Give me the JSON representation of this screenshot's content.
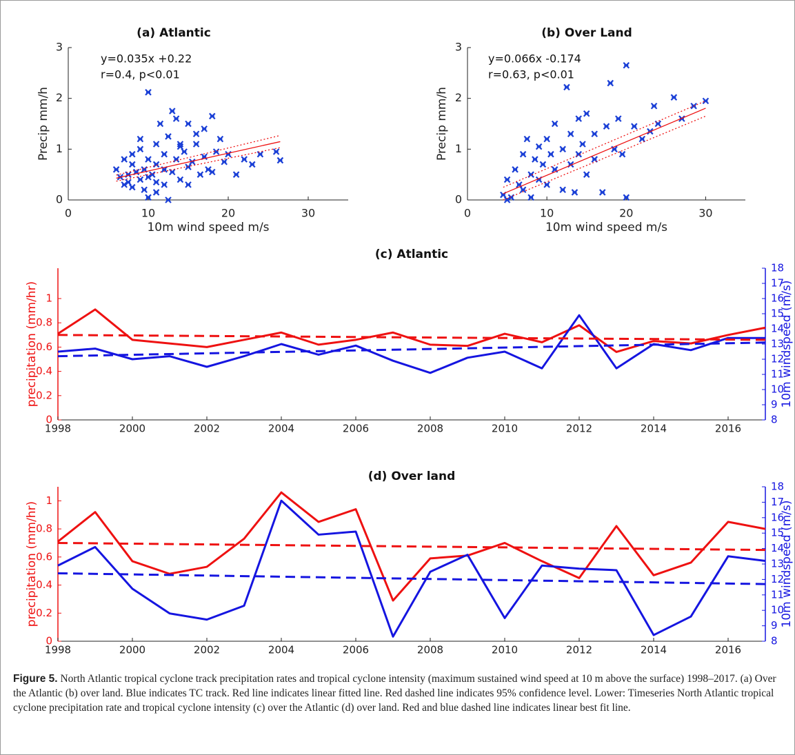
{
  "chart_data": [
    {
      "type": "scatter",
      "title": "(a) Atlantic",
      "x_label": "10m wind speed m/s",
      "y_label": "Precip mm/h",
      "annotations": [
        "y=0.035x +0.22",
        "r=0.4, p<0.01"
      ],
      "xlim": [
        0,
        35
      ],
      "ylim": [
        0,
        3
      ],
      "xticks": [
        0,
        10,
        20,
        30
      ],
      "yticks": [
        0,
        1,
        2,
        3
      ],
      "series": [
        {
          "color": "#1a3fd6",
          "marker": "x",
          "x": [
            6,
            6.5,
            7,
            7,
            7.5,
            8,
            8,
            8.5,
            9,
            9,
            9.5,
            9.5,
            10,
            10,
            10,
            10.5,
            11,
            11,
            11,
            11.5,
            12,
            12,
            12.5,
            13,
            13,
            13.5,
            14,
            14,
            14.5,
            15,
            15,
            15.5,
            16,
            16.5,
            17,
            17,
            18,
            18,
            18.5,
            19,
            19.5,
            20,
            21,
            22,
            23,
            24,
            26,
            26.5,
            10,
            12,
            9,
            8,
            13.5,
            11,
            15,
            17.5,
            16,
            7.5,
            12.5,
            14
          ],
          "values": [
            0.6,
            0.45,
            0.3,
            0.8,
            0.5,
            0.25,
            0.7,
            0.55,
            0.4,
            1.0,
            0.6,
            0.2,
            0.45,
            0.8,
            2.12,
            0.5,
            0.35,
            1.1,
            0.7,
            1.5,
            0.6,
            0.9,
            1.25,
            0.55,
            1.75,
            0.8,
            0.4,
            1.1,
            0.95,
            0.65,
            1.5,
            0.75,
            1.1,
            0.5,
            1.4,
            0.85,
            1.65,
            0.55,
            0.95,
            1.2,
            0.75,
            0.9,
            0.5,
            0.8,
            0.7,
            0.9,
            0.95,
            0.78,
            0.05,
            0.3,
            1.2,
            0.9,
            1.6,
            0.15,
            0.3,
            0.6,
            1.3,
            0.35,
            0.0,
            1.05
          ]
        },
        {
          "color": "#ee1111",
          "style": "solid",
          "x": [
            6,
            26.5
          ],
          "values": [
            0.43,
            1.148
          ]
        },
        {
          "color": "#ee1111",
          "style": "dotted",
          "x": [
            6,
            26.5
          ],
          "values": [
            0.49,
            1.27
          ]
        },
        {
          "color": "#ee1111",
          "style": "dotted",
          "x": [
            6,
            26.5
          ],
          "values": [
            0.37,
            1.03
          ]
        }
      ]
    },
    {
      "type": "scatter",
      "title": "(b) Over Land",
      "x_label": "10m wind speed m/s",
      "y_label": "Precip mm/h",
      "annotations": [
        "y=0.066x -0.174",
        "r=0.63, p<0.01"
      ],
      "xlim": [
        0,
        35
      ],
      "ylim": [
        0,
        3
      ],
      "xticks": [
        0,
        10,
        20,
        30
      ],
      "yticks": [
        0,
        1,
        2,
        3
      ],
      "series": [
        {
          "color": "#1a3fd6",
          "marker": "x",
          "x": [
            4.5,
            5,
            5,
            5.5,
            6,
            6.5,
            7,
            7,
            7.5,
            8,
            8,
            8.5,
            9,
            9,
            9.5,
            10,
            10,
            10.5,
            11,
            11,
            12,
            12,
            12.5,
            13,
            13,
            13.5,
            14,
            14,
            14.5,
            15,
            15,
            16,
            16,
            17,
            17.5,
            18,
            18.5,
            19,
            19.5,
            20,
            20,
            21,
            22,
            23,
            23.5,
            24,
            26,
            27,
            28.5,
            30
          ],
          "values": [
            0.1,
            0.0,
            0.4,
            0.05,
            0.6,
            0.3,
            0.9,
            0.2,
            1.2,
            0.5,
            0.05,
            0.8,
            0.4,
            1.05,
            0.7,
            1.2,
            0.3,
            0.9,
            0.6,
            1.5,
            1.0,
            0.2,
            2.22,
            0.7,
            1.3,
            0.15,
            1.6,
            0.9,
            1.1,
            1.7,
            0.5,
            1.3,
            0.8,
            0.15,
            1.45,
            2.3,
            1.0,
            1.6,
            0.9,
            2.65,
            0.05,
            1.45,
            1.2,
            1.35,
            1.85,
            1.5,
            2.02,
            1.6,
            1.85,
            1.95
          ]
        },
        {
          "color": "#ee1111",
          "style": "solid",
          "x": [
            4.5,
            30
          ],
          "values": [
            0.123,
            1.806
          ]
        },
        {
          "color": "#ee1111",
          "style": "dotted",
          "x": [
            4.5,
            30
          ],
          "values": [
            0.25,
            1.95
          ]
        },
        {
          "color": "#ee1111",
          "style": "dotted",
          "x": [
            4.5,
            30
          ],
          "values": [
            0.0,
            1.65
          ]
        }
      ]
    },
    {
      "type": "line",
      "title": "(c) Atlantic",
      "y_label": "precipitation (mm/hr)",
      "y2_label": "10m windspeed (m/s)",
      "y_axis_color": "#ee1111",
      "y2_axis_color": "#1515e0",
      "x": [
        1998,
        1999,
        2000,
        2001,
        2002,
        2003,
        2004,
        2005,
        2006,
        2007,
        2008,
        2009,
        2010,
        2011,
        2012,
        2013,
        2014,
        2015,
        2016,
        2017
      ],
      "xlim": [
        1998,
        2017
      ],
      "xticks": [
        1998,
        2000,
        2002,
        2004,
        2006,
        2008,
        2010,
        2012,
        2014,
        2016
      ],
      "ylim": [
        0,
        1.25
      ],
      "yticks": [
        0,
        0.2,
        0.4,
        0.6,
        0.8,
        1
      ],
      "y2lim": [
        8,
        18
      ],
      "y2ticks": [
        8,
        9,
        10,
        11,
        12,
        13,
        14,
        15,
        16,
        17,
        18
      ],
      "series": [
        {
          "color": "#ee1111",
          "style": "solid",
          "values": [
            0.71,
            0.91,
            0.66,
            0.63,
            0.6,
            0.66,
            0.72,
            0.62,
            0.66,
            0.72,
            0.62,
            0.61,
            0.71,
            0.64,
            0.78,
            0.56,
            0.65,
            0.63,
            0.7,
            0.76
          ]
        },
        {
          "color": "#1515e0",
          "style": "solid",
          "axis": "y2",
          "values": [
            12.5,
            12.7,
            12.0,
            12.2,
            11.5,
            12.2,
            13.0,
            12.3,
            12.9,
            11.9,
            11.1,
            12.1,
            12.5,
            11.4,
            14.9,
            11.4,
            13.0,
            12.6,
            13.4,
            13.4
          ]
        },
        {
          "color": "#ee1111",
          "style": "dashed",
          "x": [
            1998,
            2017
          ],
          "values": [
            0.7,
            0.66
          ]
        },
        {
          "color": "#1515e0",
          "style": "dashed",
          "axis": "y2",
          "x": [
            1998,
            2017
          ],
          "values": [
            12.2,
            13.1
          ]
        }
      ]
    },
    {
      "type": "line",
      "title": "(d) Over land",
      "y_label": "precipitation (mm/hr)",
      "y2_label": "10m windspeed (m/s)",
      "y_axis_color": "#ee1111",
      "y2_axis_color": "#1515e0",
      "x": [
        1998,
        1999,
        2000,
        2001,
        2002,
        2003,
        2004,
        2005,
        2006,
        2007,
        2008,
        2009,
        2010,
        2011,
        2012,
        2013,
        2014,
        2015,
        2016,
        2017
      ],
      "xlim": [
        1998,
        2017
      ],
      "xticks": [
        1998,
        2000,
        2002,
        2004,
        2006,
        2008,
        2010,
        2012,
        2014,
        2016
      ],
      "ylim": [
        0,
        1.1
      ],
      "yticks": [
        0,
        0.2,
        0.4,
        0.6,
        0.8,
        1
      ],
      "y2lim": [
        8,
        18
      ],
      "y2ticks": [
        8,
        9,
        10,
        11,
        12,
        13,
        14,
        15,
        16,
        17,
        18
      ],
      "series": [
        {
          "color": "#ee1111",
          "style": "solid",
          "values": [
            0.71,
            0.92,
            0.57,
            0.48,
            0.53,
            0.73,
            1.06,
            0.85,
            0.94,
            0.29,
            0.59,
            0.61,
            0.7,
            0.57,
            0.45,
            0.82,
            0.47,
            0.56,
            0.85,
            0.8
          ]
        },
        {
          "color": "#1515e0",
          "style": "solid",
          "axis": "y2",
          "values": [
            12.9,
            14.1,
            11.4,
            9.8,
            9.4,
            10.3,
            17.1,
            14.9,
            15.1,
            8.3,
            12.5,
            13.6,
            9.5,
            12.9,
            12.7,
            12.6,
            8.4,
            9.6,
            13.5,
            13.2
          ]
        },
        {
          "color": "#ee1111",
          "style": "dashed",
          "x": [
            1998,
            2017
          ],
          "values": [
            0.7,
            0.65
          ]
        },
        {
          "color": "#1515e0",
          "style": "dashed",
          "axis": "y2",
          "x": [
            1998,
            2017
          ],
          "values": [
            12.4,
            11.7
          ]
        }
      ]
    }
  ],
  "caption": {
    "label": "Figure 5.",
    "text": "North Atlantic tropical cyclone track precipitation rates and tropical cyclone intensity (maximum sustained wind speed at 10 m above the surface) 1998–2017. (a) Over the Atlantic (b) over land. Blue indicates TC track. Red line indicates linear fitted line. Red dashed line indicates 95% confidence level. Lower: Timeseries North Atlantic tropical cyclone precipitation rate and tropical cyclone intensity (c) over the Atlantic (d) over land. Red and blue dashed line indicates linear best fit line."
  }
}
